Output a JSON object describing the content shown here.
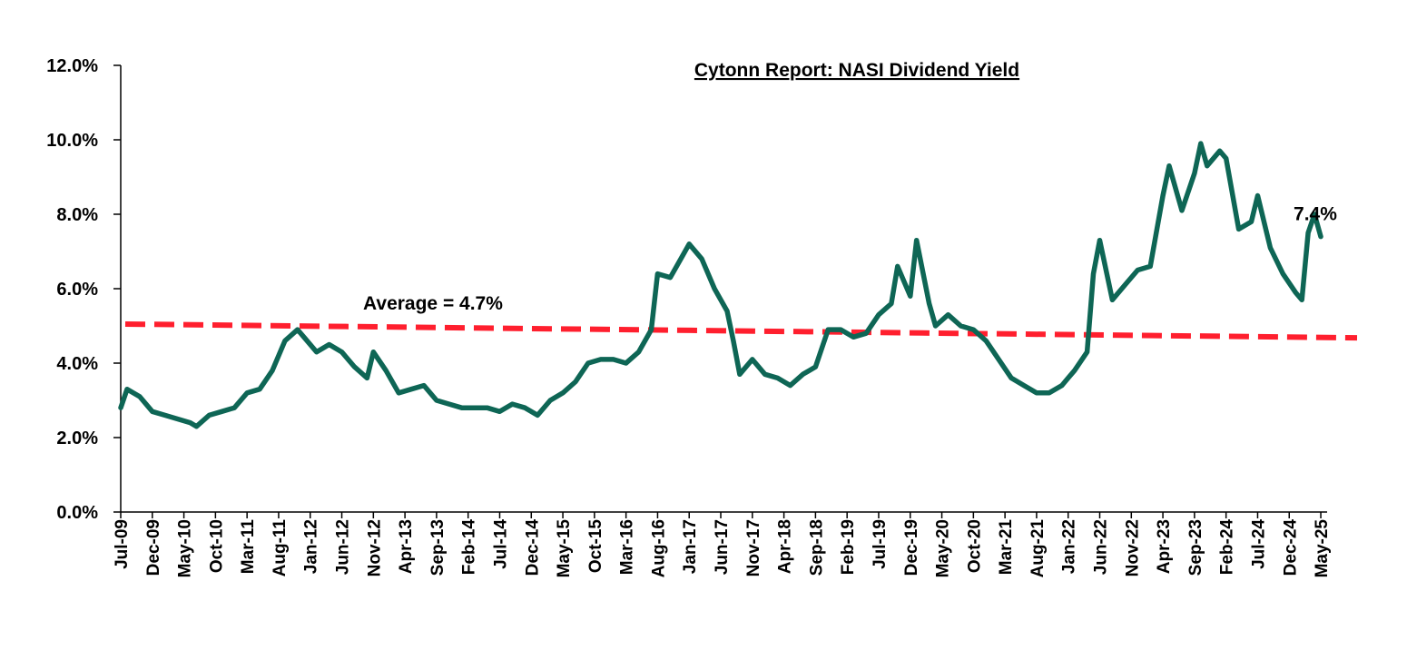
{
  "chart_data": {
    "type": "line",
    "title": "Cytonn Report: NASI Dividend Yield",
    "xlabel": "",
    "ylabel": "",
    "ylim": [
      0,
      12
    ],
    "y_ticks": [
      "0.0%",
      "2.0%",
      "4.0%",
      "6.0%",
      "8.0%",
      "10.0%",
      "12.0%"
    ],
    "y_tick_values": [
      0,
      2,
      4,
      6,
      8,
      10,
      12
    ],
    "x_tick_labels": [
      "Jul-09",
      "Dec-09",
      "May-10",
      "Oct-10",
      "Mar-11",
      "Aug-11",
      "Jan-12",
      "Jun-12",
      "Nov-12",
      "Apr-13",
      "Sep-13",
      "Feb-14",
      "Jul-14",
      "Dec-14",
      "May-15",
      "Oct-15",
      "Mar-16",
      "Aug-16",
      "Jan-17",
      "Jun-17",
      "Nov-17",
      "Apr-18",
      "Sep-18",
      "Feb-19",
      "Jul-19",
      "Dec-19",
      "May-20",
      "Oct-20",
      "Mar-21",
      "Aug-21",
      "Jan-22",
      "Jun-22",
      "Nov-22",
      "Apr-23",
      "Sep-23",
      "Feb-24",
      "Jul-24",
      "Dec-24",
      "May-25"
    ],
    "grid": false,
    "series": [
      {
        "color": "#0e6655",
        "x": [
          "2009-07",
          "2009-08",
          "2009-10",
          "2009-12",
          "2010-02",
          "2010-04",
          "2010-06",
          "2010-07",
          "2010-09",
          "2010-11",
          "2011-01",
          "2011-03",
          "2011-05",
          "2011-07",
          "2011-09",
          "2011-11",
          "2011-12",
          "2012-02",
          "2012-04",
          "2012-06",
          "2012-08",
          "2012-10",
          "2012-11",
          "2013-01",
          "2013-03",
          "2013-05",
          "2013-07",
          "2013-09",
          "2013-11",
          "2014-01",
          "2014-03",
          "2014-05",
          "2014-07",
          "2014-09",
          "2014-11",
          "2015-01",
          "2015-03",
          "2015-05",
          "2015-07",
          "2015-09",
          "2015-11",
          "2016-01",
          "2016-03",
          "2016-05",
          "2016-07",
          "2016-08",
          "2016-10",
          "2016-12",
          "2017-01",
          "2017-03",
          "2017-05",
          "2017-07",
          "2017-08",
          "2017-09",
          "2017-11",
          "2018-01",
          "2018-03",
          "2018-05",
          "2018-07",
          "2018-09",
          "2018-11",
          "2019-01",
          "2019-03",
          "2019-05",
          "2019-07",
          "2019-09",
          "2019-10",
          "2019-12",
          "2020-01",
          "2020-03",
          "2020-04",
          "2020-06",
          "2020-08",
          "2020-10",
          "2020-12",
          "2021-02",
          "2021-04",
          "2021-06",
          "2021-08",
          "2021-10",
          "2021-12",
          "2022-01",
          "2022-02",
          "2022-04",
          "2022-05",
          "2022-06",
          "2022-08",
          "2022-10",
          "2022-12",
          "2023-02",
          "2023-04",
          "2023-05",
          "2023-07",
          "2023-09",
          "2023-10",
          "2023-11",
          "2024-01",
          "2024-02",
          "2024-04",
          "2024-06",
          "2024-07",
          "2024-09",
          "2024-11",
          "2025-01",
          "2025-02",
          "2025-03",
          "2025-04",
          "2025-05"
        ],
        "values": [
          2.8,
          3.3,
          3.1,
          2.7,
          2.6,
          2.5,
          2.4,
          2.3,
          2.6,
          2.7,
          2.8,
          3.2,
          3.3,
          3.8,
          4.6,
          4.9,
          4.7,
          4.3,
          4.5,
          4.3,
          3.9,
          3.6,
          4.3,
          3.8,
          3.2,
          3.3,
          3.4,
          3.0,
          2.9,
          2.8,
          2.8,
          2.8,
          2.7,
          2.9,
          2.8,
          2.6,
          3.0,
          3.2,
          3.5,
          4.0,
          4.1,
          4.1,
          4.0,
          4.3,
          4.9,
          6.4,
          6.3,
          6.9,
          7.2,
          6.8,
          6.0,
          5.4,
          4.6,
          3.7,
          4.1,
          3.7,
          3.6,
          3.4,
          3.7,
          3.9,
          4.9,
          4.9,
          4.7,
          4.8,
          5.3,
          5.6,
          6.6,
          5.8,
          7.3,
          5.6,
          5.0,
          5.3,
          5.0,
          4.9,
          4.6,
          4.1,
          3.6,
          3.4,
          3.2,
          3.2,
          3.4,
          3.6,
          3.8,
          4.3,
          6.4,
          7.3,
          5.7,
          6.1,
          6.5,
          6.6,
          8.5,
          9.3,
          8.1,
          9.1,
          9.9,
          9.3,
          9.7,
          9.5,
          7.6,
          7.8,
          8.5,
          7.1,
          6.4,
          5.9,
          5.7,
          7.5,
          8.0,
          7.4
        ]
      }
    ],
    "average": {
      "label": "Average = 4.7%",
      "value": 4.7,
      "color": "#ff1f2e",
      "start_value": 5.05,
      "end_value": 4.68
    },
    "annotations": [
      {
        "text": "7.4%",
        "at": "2025-05",
        "value": 7.4
      }
    ]
  }
}
